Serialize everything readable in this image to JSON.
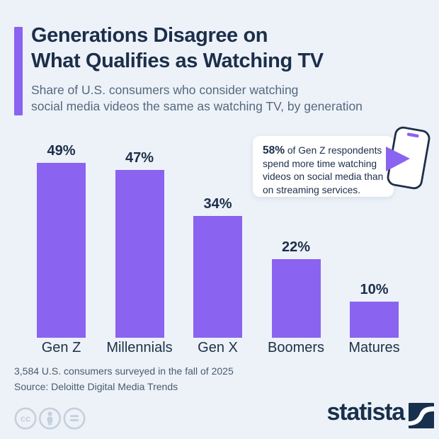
{
  "header": {
    "title_lines": [
      "Generations Disagree on",
      "What Qualifies as Watching TV"
    ],
    "subtitle_lines": [
      "Share of U.S. consumers who consider watching",
      "social media videos the same as watching TV, by generation"
    ]
  },
  "chart_data": {
    "type": "bar",
    "title": "Generations Disagree on What Qualifies as Watching TV",
    "subtitle": "Share of U.S. consumers who consider watching social media videos the same as watching TV, by generation",
    "categories": [
      "Gen Z",
      "Millennials",
      "Gen X",
      "Boomers",
      "Matures"
    ],
    "values": [
      49,
      47,
      34,
      22,
      10
    ],
    "value_labels": [
      "49%",
      "47%",
      "34%",
      "22%",
      "10%"
    ],
    "unit": "%",
    "ylim": [
      0,
      56
    ],
    "bar_color": "#8a63f0",
    "grid": false,
    "legend": false,
    "value_labels_position": "above-bars",
    "axis_lines": false
  },
  "callout": {
    "highlight": "58%",
    "text": " of Gen Z respondents spend more time watching videos on social media than on streaming services."
  },
  "footer": {
    "note": "3,584 U.S. consumers surveyed in the fall of 2025",
    "source": "Source: Deloitte Digital Media Trends"
  },
  "brand": {
    "wordmark": "statista"
  },
  "license_icons": [
    "cc",
    "attribution",
    "nd"
  ],
  "colors": {
    "accent_purple": "#8a63f0",
    "navy": "#1c2e4a",
    "subtitle_gray": "#54687f",
    "background": "#edf2f8",
    "footer_gray": "#4a5a6e",
    "license_icon_gray": "#c5d0dd"
  }
}
